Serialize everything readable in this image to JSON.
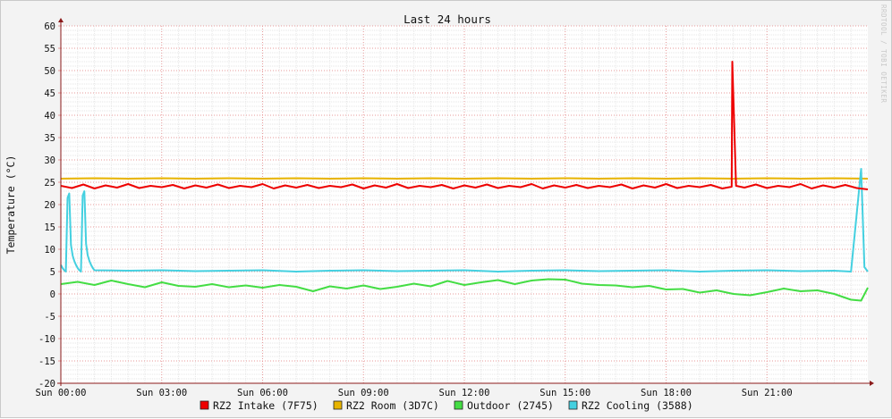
{
  "chart_data": {
    "type": "line",
    "title": "Last 24 hours",
    "ylabel": "Temperature (°C)",
    "xlabel": "",
    "watermark": "RRDTOOL / TOBI OETIKER",
    "ylim": [
      -20,
      60
    ],
    "yticks": [
      60,
      55,
      50,
      45,
      40,
      35,
      30,
      25,
      20,
      15,
      10,
      5,
      0,
      -5,
      -10,
      -15,
      -20
    ],
    "x_range_hours": [
      0,
      24
    ],
    "xticks": [
      {
        "hour": 0,
        "label": "Sun 00:00"
      },
      {
        "hour": 3,
        "label": "Sun 03:00"
      },
      {
        "hour": 6,
        "label": "Sun 06:00"
      },
      {
        "hour": 9,
        "label": "Sun 09:00"
      },
      {
        "hour": 12,
        "label": "Sun 12:00"
      },
      {
        "hour": 15,
        "label": "Sun 15:00"
      },
      {
        "hour": 18,
        "label": "Sun 18:00"
      },
      {
        "hour": 21,
        "label": "Sun 21:00"
      }
    ],
    "grid": true,
    "legend_position": "bottom",
    "series": [
      {
        "name": "RZ2 Intake (7F75)",
        "color": "#ee0000",
        "x": [
          0,
          0.33,
          0.67,
          1,
          1.33,
          1.67,
          2,
          2.33,
          2.67,
          3,
          3.33,
          3.67,
          4,
          4.33,
          4.67,
          5,
          5.33,
          5.67,
          6,
          6.33,
          6.67,
          7,
          7.33,
          7.67,
          8,
          8.33,
          8.67,
          9,
          9.33,
          9.67,
          10,
          10.33,
          10.67,
          11,
          11.33,
          11.67,
          12,
          12.33,
          12.67,
          13,
          13.33,
          13.67,
          14,
          14.33,
          14.67,
          15,
          15.33,
          15.67,
          16,
          16.33,
          16.67,
          17,
          17.33,
          17.67,
          18,
          18.33,
          18.67,
          19,
          19.33,
          19.67,
          19.95,
          19.97,
          20.08,
          20.33,
          20.67,
          21,
          21.33,
          21.67,
          22,
          22.33,
          22.67,
          23,
          23.33,
          23.67,
          24
        ],
        "y": [
          24.2,
          23.7,
          24.5,
          23.6,
          24.3,
          23.8,
          24.6,
          23.7,
          24.2,
          23.9,
          24.4,
          23.6,
          24.3,
          23.8,
          24.5,
          23.7,
          24.2,
          23.9,
          24.6,
          23.6,
          24.3,
          23.8,
          24.4,
          23.7,
          24.2,
          23.9,
          24.5,
          23.6,
          24.3,
          23.8,
          24.6,
          23.7,
          24.2,
          23.9,
          24.4,
          23.6,
          24.3,
          23.8,
          24.5,
          23.7,
          24.2,
          23.9,
          24.6,
          23.6,
          24.3,
          23.8,
          24.4,
          23.7,
          24.2,
          23.9,
          24.5,
          23.6,
          24.3,
          23.8,
          24.6,
          23.7,
          24.2,
          23.9,
          24.4,
          23.6,
          24.0,
          52.0,
          24.2,
          23.8,
          24.5,
          23.7,
          24.2,
          23.9,
          24.6,
          23.6,
          24.3,
          23.8,
          24.4,
          23.7,
          23.4
        ]
      },
      {
        "name": "RZ2 Room (3D7C)",
        "color": "#e8b400",
        "x": [
          0,
          1,
          2,
          3,
          4,
          5,
          6,
          7,
          8,
          9,
          10,
          11,
          12,
          13,
          14,
          15,
          16,
          17,
          18,
          19,
          20,
          21,
          22,
          23,
          24
        ],
        "y": [
          25.8,
          25.9,
          25.8,
          25.9,
          25.8,
          25.9,
          25.8,
          25.9,
          25.8,
          25.9,
          25.8,
          25.9,
          25.8,
          25.9,
          25.8,
          25.9,
          25.8,
          25.9,
          25.8,
          25.9,
          25.8,
          25.9,
          25.8,
          25.9,
          25.8
        ]
      },
      {
        "name": "Outdoor (2745)",
        "color": "#44dd44",
        "x": [
          0,
          0.5,
          1,
          1.5,
          2,
          2.5,
          3,
          3.5,
          4,
          4.5,
          5,
          5.5,
          6,
          6.5,
          7,
          7.5,
          8,
          8.5,
          9,
          9.5,
          10,
          10.5,
          11,
          11.5,
          12,
          12.5,
          13,
          13.5,
          14,
          14.5,
          15,
          15.5,
          16,
          16.5,
          17,
          17.5,
          18,
          18.5,
          19,
          19.5,
          20,
          20.5,
          21,
          21.5,
          22,
          22.5,
          23,
          23.5,
          23.8,
          24
        ],
        "y": [
          2.2,
          2.7,
          2.0,
          3.0,
          2.2,
          1.5,
          2.6,
          1.8,
          1.6,
          2.2,
          1.5,
          1.9,
          1.4,
          2.0,
          1.6,
          0.6,
          1.7,
          1.2,
          1.9,
          1.1,
          1.6,
          2.3,
          1.7,
          2.9,
          2.0,
          2.6,
          3.1,
          2.2,
          3.0,
          3.3,
          3.2,
          2.3,
          2.0,
          1.9,
          1.5,
          1.8,
          1.0,
          1.1,
          0.3,
          0.8,
          0.0,
          -0.3,
          0.4,
          1.2,
          0.6,
          0.8,
          0.0,
          -1.3,
          -1.5,
          1.4
        ]
      },
      {
        "name": "RZ2 Cooling (3588)",
        "color": "#44d0e0",
        "x": [
          0,
          0.05,
          0.1,
          0.15,
          0.2,
          0.25,
          0.3,
          0.35,
          0.4,
          0.45,
          0.5,
          0.55,
          0.6,
          0.65,
          0.7,
          0.75,
          0.8,
          0.85,
          0.9,
          0.95,
          1,
          2,
          3,
          4,
          5,
          6,
          7,
          8,
          9,
          10,
          11,
          12,
          13,
          14,
          15,
          16,
          17,
          18,
          19,
          20,
          21,
          22,
          23,
          23.5,
          23.8,
          23.9,
          24
        ],
        "y": [
          6.5,
          5.8,
          5.3,
          5.0,
          21.5,
          22.5,
          11.0,
          8.6,
          7.4,
          6.5,
          5.8,
          5.3,
          5.0,
          22.0,
          23.0,
          11.2,
          8.6,
          7.4,
          6.5,
          5.8,
          5.3,
          5.2,
          5.3,
          5.1,
          5.2,
          5.3,
          5.0,
          5.2,
          5.3,
          5.1,
          5.2,
          5.3,
          5.0,
          5.2,
          5.3,
          5.1,
          5.2,
          5.3,
          5.0,
          5.2,
          5.3,
          5.1,
          5.2,
          5.0,
          28.0,
          6.0,
          5.0
        ]
      }
    ]
  }
}
